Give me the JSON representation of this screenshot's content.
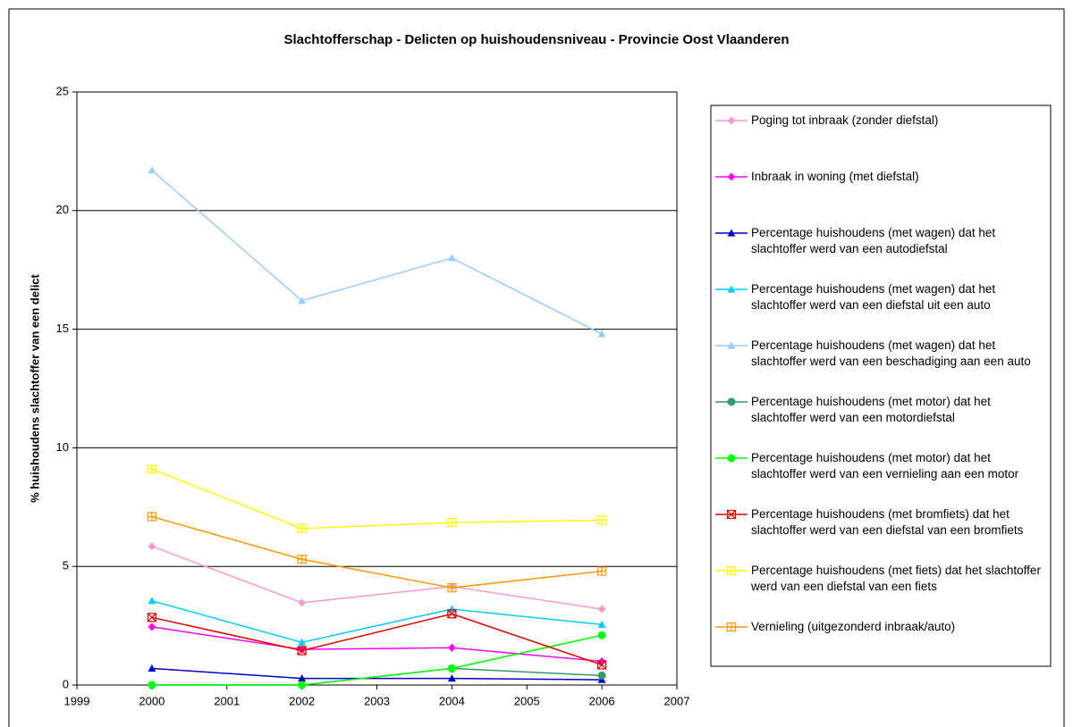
{
  "chart_data": {
    "type": "line",
    "title": "Slachtofferschap - Delicten op huishoudensniveau - Provincie Oost Vlaanderen",
    "ylabel": "% huishoudens slachtoffer van een delict",
    "x": [
      2000,
      2002,
      2004,
      2006
    ],
    "xlim": [
      1999,
      2007
    ],
    "xticks": [
      1999,
      2000,
      2001,
      2002,
      2003,
      2004,
      2005,
      2006,
      2007
    ],
    "ylim": [
      0,
      25
    ],
    "yticks": [
      0,
      5,
      10,
      15,
      20,
      25
    ],
    "grid": true,
    "legend": "right",
    "series": [
      {
        "name": "Poging tot inbraak (zonder diefstal)",
        "color": "#FF99CC",
        "marker": "diamond",
        "values": [
          5.85,
          3.47,
          4.15,
          3.2
        ]
      },
      {
        "name": "Inbraak in woning (met diefstal)",
        "color": "#FF00FF",
        "marker": "diamond",
        "values": [
          2.45,
          1.5,
          1.57,
          1.0
        ]
      },
      {
        "name": "Percentage huishoudens (met wagen) dat het slachtoffer werd van een autodiefstal",
        "color": "#0000CC",
        "marker": "triangle",
        "values": [
          0.7,
          0.28,
          0.28,
          0.22
        ]
      },
      {
        "name": "Percentage huishoudens (met wagen) dat het slachtoffer werd van een diefstal uit een auto",
        "color": "#00CCFF",
        "marker": "triangle",
        "values": [
          3.55,
          1.8,
          3.2,
          2.55
        ]
      },
      {
        "name": "Percentage huishoudens (met wagen) dat het slachtoffer werd van een beschadiging aan een auto",
        "color": "#99CCFF",
        "marker": "triangle",
        "values": [
          21.7,
          16.2,
          18.0,
          14.8
        ]
      },
      {
        "name": "Percentage huishoudens (met motor) dat het slachtoffer werd van een motordiefstal",
        "color": "#339966",
        "marker": "circle",
        "values": [
          0,
          0,
          0.7,
          0.4
        ]
      },
      {
        "name": "Percentage huishoudens (met motor) dat het slachtoffer werd van een vernieling aan een motor",
        "color": "#00FF00",
        "marker": "circle",
        "values": [
          0,
          0,
          0.7,
          2.1
        ]
      },
      {
        "name": "Percentage huishoudens (met bromfiets) dat het slachtoffer werd van een diefstal van een bromfiets",
        "color": "#DD0000",
        "marker": "square-x",
        "values": [
          2.85,
          1.45,
          3.0,
          0.85
        ]
      },
      {
        "name": "Percentage huishoudens (met fiets) dat het slachtoffer werd van een diefstal van een fiets",
        "color": "#FFFF00",
        "marker": "square-plus",
        "values": [
          9.1,
          6.6,
          6.85,
          6.95
        ]
      },
      {
        "name": "Vernieling (uitgezonderd inbraak/auto)",
        "color": "#FF9900",
        "marker": "square-plus",
        "values": [
          7.1,
          5.3,
          4.1,
          4.8
        ]
      }
    ]
  }
}
